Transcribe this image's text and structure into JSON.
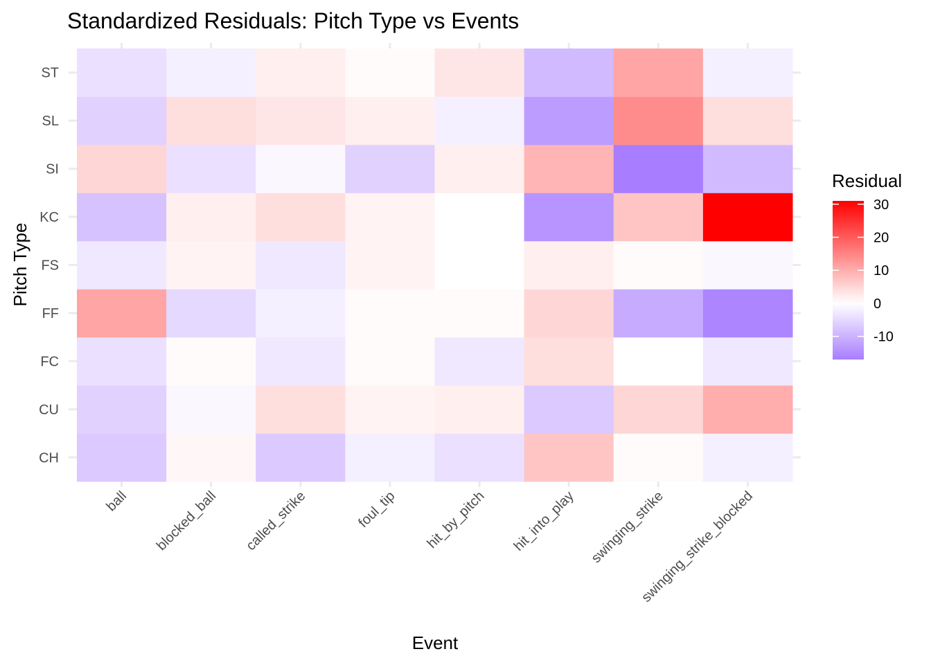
{
  "chart_data": {
    "type": "heatmap",
    "title": "Standardized Residuals: Pitch Type vs Events",
    "xlabel": "Event",
    "ylabel": "Pitch Type",
    "x_categories": [
      "ball",
      "blocked_ball",
      "called_strike",
      "foul_tip",
      "hit_by_pitch",
      "hit_into_play",
      "swinging_strike",
      "swinging_strike_blocked"
    ],
    "y_categories": [
      "CH",
      "CU",
      "FC",
      "FF",
      "FS",
      "KC",
      "SI",
      "SL",
      "ST"
    ],
    "values": {
      "ST": [
        -4,
        -2,
        2,
        0.5,
        3,
        -9,
        11,
        -2
      ],
      "SL": [
        -6,
        4,
        3,
        2,
        -2,
        -13,
        14,
        4
      ],
      "SI": [
        5,
        -4,
        -1,
        -6,
        2,
        9,
        -17,
        -9
      ],
      "KC": [
        -8,
        2,
        4,
        1.5,
        0,
        -14,
        7,
        31
      ],
      "FS": [
        -3,
        1.5,
        -3,
        1.5,
        0,
        2,
        0.5,
        -1
      ],
      "FF": [
        11,
        -5,
        -2,
        0.5,
        0.5,
        5,
        -11,
        -16
      ],
      "FC": [
        -4,
        0.5,
        -3,
        0.5,
        -3,
        4,
        0,
        -3
      ],
      "CU": [
        -6,
        -1,
        4,
        1.5,
        2,
        -7,
        5,
        10
      ],
      "CH": [
        -7,
        1,
        -7,
        -2,
        -4,
        7,
        0.5,
        -2
      ]
    },
    "color_scale": {
      "low": "#a87dff",
      "mid": "#ffffff",
      "high": "#ff0000",
      "min": -17,
      "mid_value": 0,
      "max": 31
    },
    "legend": {
      "title": "Residual",
      "ticks": [
        30,
        20,
        10,
        0,
        -10
      ],
      "placement": "right"
    },
    "grid": true
  }
}
